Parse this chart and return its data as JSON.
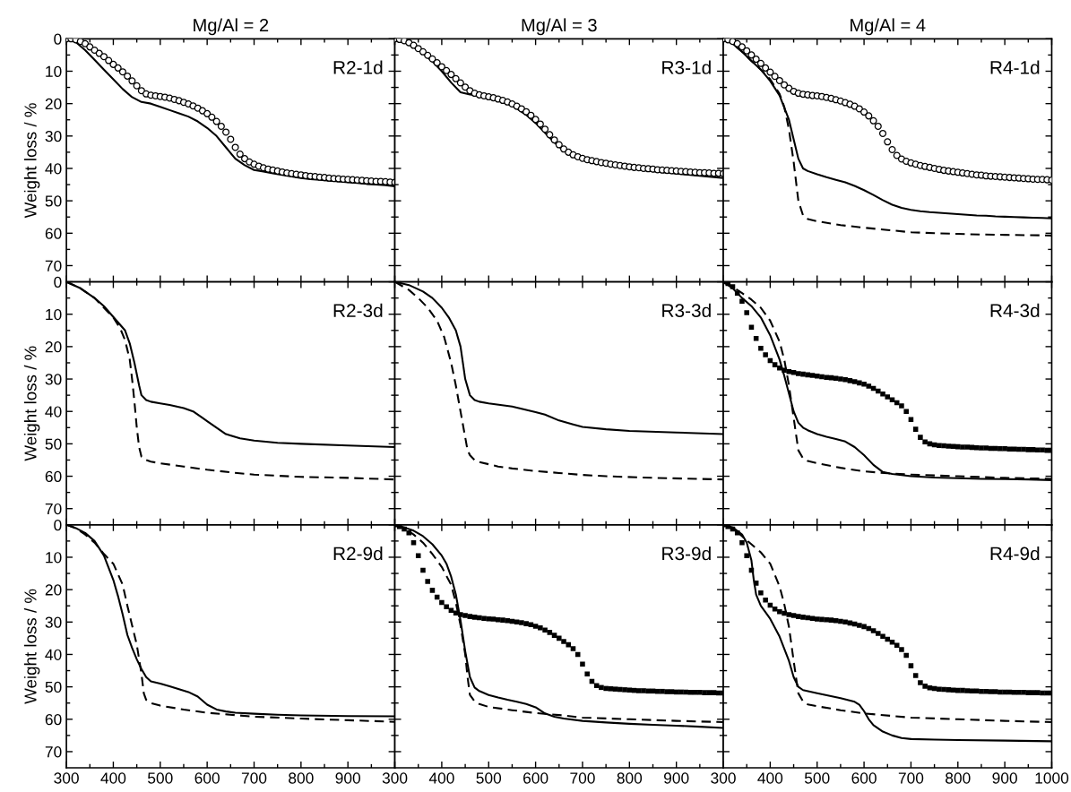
{
  "chart_data": [
    {
      "type": "line",
      "title": "Mg/Al = 2",
      "ylabel": "Weight loss / %",
      "xlim": [
        300,
        1000
      ],
      "ylim": [
        75,
        0
      ],
      "xticks": [
        300,
        400,
        500,
        600,
        700,
        800,
        900,
        1000
      ],
      "yticks": [
        0,
        10,
        20,
        30,
        40,
        50,
        60,
        70
      ],
      "tick_labels": "y",
      "annotations": [
        "R2-1d"
      ],
      "series": [
        {
          "color": "#000000",
          "line_style": "solid",
          "x": [
            300,
            320,
            340,
            360,
            380,
            400,
            420,
            440,
            460,
            480,
            500,
            520,
            540,
            560,
            580,
            600,
            620,
            640,
            660,
            680,
            700,
            720,
            740,
            760,
            780,
            800,
            820,
            840,
            860,
            880,
            900,
            920,
            940,
            960,
            980,
            1000
          ],
          "values": [
            0,
            1,
            3.5,
            6.5,
            9.5,
            12.5,
            15.5,
            18,
            19.5,
            20,
            21,
            22,
            23,
            24,
            25.5,
            27.5,
            30,
            33.5,
            37,
            39,
            40.5,
            41,
            41.5,
            42,
            42.5,
            43,
            43.3,
            43.5,
            43.8,
            44,
            44.3,
            44.5,
            44.8,
            45,
            45.2,
            45.5
          ]
        },
        {
          "type": "scatter",
          "marker": "circle",
          "color": "#000000",
          "x": [
            300,
            310,
            320,
            330,
            340,
            350,
            360,
            370,
            380,
            390,
            400,
            410,
            420,
            430,
            440,
            450,
            460,
            470,
            480,
            490,
            500,
            510,
            520,
            530,
            540,
            550,
            560,
            570,
            580,
            590,
            600,
            610,
            620,
            630,
            640,
            650,
            660,
            670,
            680,
            690,
            700,
            710,
            720,
            730,
            740,
            750,
            760,
            770,
            780,
            790,
            800,
            810,
            820,
            830,
            840,
            850,
            860,
            870,
            880,
            890,
            900,
            910,
            920,
            930,
            940,
            950,
            960,
            970,
            980,
            990,
            1000
          ],
          "values": [
            0,
            0,
            0.3,
            0.8,
            1.5,
            2.5,
            3.5,
            4.5,
            5.5,
            6.7,
            7.9,
            9,
            10.2,
            11.5,
            13,
            14.5,
            16,
            17,
            17.4,
            17.6,
            17.8,
            18,
            18.3,
            18.7,
            19.1,
            19.6,
            20.1,
            20.7,
            21.4,
            22.2,
            23.1,
            24.2,
            25.5,
            27,
            28.8,
            31,
            33.5,
            35.6,
            37,
            38,
            38.7,
            39.3,
            39.8,
            40.2,
            40.5,
            40.8,
            41.1,
            41.4,
            41.6,
            41.8,
            42,
            42.2,
            42.4,
            42.5,
            42.7,
            42.8,
            43,
            43.1,
            43.2,
            43.3,
            43.4,
            43.5,
            43.6,
            43.7,
            43.8,
            43.9,
            44,
            44,
            44.1,
            44.2,
            44.3
          ]
        }
      ]
    },
    {
      "type": "line",
      "title": "Mg/Al = 3",
      "xlim": [
        300,
        1000
      ],
      "ylim": [
        75,
        0
      ],
      "xticks": [
        300,
        400,
        500,
        600,
        700,
        800,
        900,
        1000
      ],
      "yticks": [
        0,
        10,
        20,
        30,
        40,
        50,
        60,
        70
      ],
      "tick_labels": false,
      "annotations": [
        "R3-1d"
      ],
      "series": [
        {
          "color": "#000000",
          "line_style": "solid",
          "x": [
            300,
            320,
            340,
            360,
            380,
            400,
            420,
            440,
            460,
            480,
            500,
            520,
            540,
            560,
            580,
            600,
            620,
            640,
            660,
            680,
            700,
            720,
            750,
            800,
            850,
            900,
            950,
            1000
          ],
          "values": [
            0,
            1,
            2.5,
            4.5,
            7,
            10,
            13.5,
            16.5,
            17.2,
            17.5,
            18,
            18.8,
            20,
            21.5,
            23.5,
            26,
            29,
            32,
            34.5,
            36,
            37,
            37.8,
            38.7,
            40,
            40.9,
            41.6,
            42.3,
            43
          ]
        },
        {
          "type": "scatter",
          "marker": "circle",
          "color": "#000000",
          "x": [
            300,
            310,
            320,
            330,
            340,
            350,
            360,
            370,
            380,
            390,
            400,
            410,
            420,
            430,
            440,
            450,
            460,
            470,
            480,
            490,
            500,
            510,
            520,
            530,
            540,
            550,
            560,
            570,
            580,
            590,
            600,
            610,
            620,
            630,
            640,
            650,
            660,
            670,
            680,
            690,
            700,
            710,
            720,
            730,
            740,
            750,
            760,
            770,
            780,
            790,
            800,
            810,
            820,
            830,
            840,
            850,
            860,
            870,
            880,
            890,
            900,
            910,
            920,
            930,
            940,
            950,
            960,
            970,
            980,
            990,
            1000
          ],
          "values": [
            0,
            0.2,
            0.6,
            1.2,
            2,
            3,
            4,
            5.1,
            6.2,
            7.4,
            8.6,
            9.8,
            11,
            12.3,
            13.6,
            14.9,
            16,
            16.8,
            17.3,
            17.6,
            17.9,
            18.2,
            18.6,
            19,
            19.5,
            20.1,
            20.8,
            21.6,
            22.5,
            23.6,
            24.9,
            26.3,
            27.9,
            29.6,
            31.2,
            32.7,
            34,
            35,
            35.8,
            36.4,
            36.9,
            37.3,
            37.6,
            37.9,
            38.2,
            38.4,
            38.7,
            38.9,
            39.1,
            39.3,
            39.5,
            39.7,
            39.8,
            40,
            40.1,
            40.2,
            40.4,
            40.5,
            40.6,
            40.7,
            40.8,
            40.9,
            41,
            41.1,
            41.2,
            41.3,
            41.3,
            41.4,
            41.5,
            41.5,
            41.6
          ]
        }
      ]
    },
    {
      "type": "line",
      "title": "Mg/Al = 4",
      "xlim": [
        300,
        1000
      ],
      "ylim": [
        75,
        0
      ],
      "xticks": [
        300,
        400,
        500,
        600,
        700,
        800,
        900,
        1000
      ],
      "yticks": [
        0,
        10,
        20,
        30,
        40,
        50,
        60,
        70
      ],
      "tick_labels": false,
      "annotations": [
        "R4-1d"
      ],
      "series": [
        {
          "color": "#000000",
          "line_style": "solid",
          "x": [
            300,
            320,
            340,
            360,
            380,
            400,
            420,
            440,
            450,
            460,
            470,
            480,
            500,
            520,
            540,
            560,
            580,
            600,
            620,
            640,
            660,
            680,
            700,
            720,
            740,
            760,
            780,
            800,
            820,
            840,
            860,
            880,
            900,
            920,
            940,
            960,
            980,
            1000
          ],
          "values": [
            0,
            1.5,
            4,
            6.8,
            9.5,
            13,
            17.5,
            25,
            31,
            37,
            40,
            40.8,
            41.8,
            42.7,
            43.5,
            44.3,
            45.4,
            46.7,
            48.2,
            49.8,
            51.2,
            52.2,
            52.8,
            53.2,
            53.5,
            53.7,
            53.9,
            54.1,
            54.3,
            54.5,
            54.6,
            54.8,
            54.9,
            55,
            55.1,
            55.2,
            55.3,
            55.4
          ]
        },
        {
          "color": "#000000",
          "line_style": "dashed",
          "x": [
            300,
            320,
            340,
            360,
            380,
            400,
            420,
            430,
            440,
            450,
            460,
            470,
            480,
            500,
            550,
            600,
            650,
            700,
            750,
            800,
            850,
            900,
            950,
            1000
          ],
          "values": [
            0,
            1.5,
            4,
            6.8,
            9.5,
            12.5,
            17,
            21,
            28,
            38,
            50,
            54.5,
            55.6,
            56.3,
            57.5,
            58.3,
            59,
            59.7,
            60,
            60.2,
            60.4,
            60.5,
            60.6,
            60.7
          ]
        },
        {
          "type": "scatter",
          "marker": "circle",
          "color": "#000000",
          "x": [
            300,
            310,
            320,
            330,
            340,
            350,
            360,
            370,
            380,
            390,
            400,
            410,
            420,
            430,
            440,
            450,
            460,
            470,
            480,
            490,
            500,
            510,
            520,
            530,
            540,
            550,
            560,
            570,
            580,
            590,
            600,
            610,
            620,
            630,
            640,
            650,
            660,
            670,
            680,
            690,
            700,
            710,
            720,
            730,
            740,
            750,
            760,
            770,
            780,
            790,
            800,
            810,
            820,
            830,
            840,
            850,
            860,
            870,
            880,
            890,
            900,
            910,
            920,
            930,
            940,
            950,
            960,
            970,
            980,
            990,
            1000
          ],
          "values": [
            0,
            0.3,
            0.8,
            1.5,
            2.5,
            3.7,
            5,
            6.3,
            7.6,
            9,
            10.3,
            11.6,
            12.9,
            14.2,
            15.3,
            16.2,
            16.8,
            17.1,
            17.3,
            17.5,
            17.6,
            17.8,
            18.1,
            18.4,
            18.8,
            19.2,
            19.7,
            20.2,
            20.8,
            21.6,
            22.6,
            23.8,
            25.3,
            27,
            29.2,
            31.8,
            34.2,
            36,
            37.1,
            37.8,
            38.3,
            38.7,
            39.1,
            39.4,
            39.7,
            40,
            40.3,
            40.6,
            40.8,
            41,
            41.2,
            41.4,
            41.6,
            41.8,
            42,
            42.1,
            42.3,
            42.4,
            42.5,
            42.6,
            42.7,
            42.8,
            42.9,
            43,
            43.1,
            43.2,
            43.3,
            43.4,
            43.4,
            43.5,
            43.6
          ]
        }
      ]
    },
    {
      "type": "line",
      "ylabel": "Weight loss / %",
      "xlim": [
        300,
        1000
      ],
      "ylim": [
        75,
        0
      ],
      "xticks": [
        300,
        400,
        500,
        600,
        700,
        800,
        900,
        1000
      ],
      "yticks": [
        0,
        10,
        20,
        30,
        40,
        50,
        60,
        70
      ],
      "tick_labels": "y",
      "annotations": [
        "R2-3d"
      ],
      "series": [
        {
          "color": "#000000",
          "line_style": "solid",
          "x": [
            300,
            330,
            360,
            380,
            395,
            410,
            425,
            435,
            445,
            455,
            460,
            470,
            480,
            500,
            520,
            550,
            570,
            590,
            600,
            620,
            640,
            670,
            700,
            750,
            800,
            900,
            1000
          ],
          "values": [
            0,
            2,
            5,
            7.5,
            10,
            12.5,
            15,
            19,
            25,
            32,
            35,
            36.5,
            37,
            37.5,
            38,
            39,
            40,
            42,
            43,
            45,
            47,
            48.3,
            49,
            49.7,
            50,
            50.5,
            51
          ]
        },
        {
          "color": "#000000",
          "line_style": "dashed",
          "x": [
            300,
            330,
            360,
            380,
            400,
            415,
            425,
            435,
            440,
            445,
            450,
            455,
            460,
            470,
            480,
            500,
            550,
            600,
            650,
            700,
            800,
            900,
            1000
          ],
          "values": [
            0,
            2,
            5,
            8,
            11,
            14.5,
            18,
            24,
            30,
            37,
            45,
            51,
            54,
            55,
            55.5,
            56,
            57,
            58,
            58.8,
            59.5,
            60.2,
            60.5,
            61
          ]
        }
      ]
    },
    {
      "type": "line",
      "xlim": [
        300,
        1000
      ],
      "ylim": [
        75,
        0
      ],
      "xticks": [
        300,
        400,
        500,
        600,
        700,
        800,
        900,
        1000
      ],
      "yticks": [
        0,
        10,
        20,
        30,
        40,
        50,
        60,
        70
      ],
      "tick_labels": false,
      "annotations": [
        "R3-3d"
      ],
      "series": [
        {
          "color": "#000000",
          "line_style": "solid",
          "x": [
            300,
            330,
            360,
            380,
            400,
            415,
            430,
            440,
            445,
            450,
            460,
            470,
            480,
            500,
            550,
            600,
            620,
            650,
            680,
            700,
            750,
            800,
            900,
            1000
          ],
          "values": [
            0,
            1,
            3,
            5,
            8,
            11,
            15,
            20,
            25,
            30,
            35,
            36.5,
            37,
            37.5,
            38.5,
            40.2,
            41,
            42.8,
            44,
            44.8,
            45.5,
            46,
            46.5,
            47
          ]
        },
        {
          "color": "#000000",
          "line_style": "dashed",
          "x": [
            300,
            330,
            350,
            370,
            390,
            405,
            420,
            430,
            440,
            450,
            455,
            460,
            470,
            480,
            500,
            520,
            550,
            600,
            650,
            700,
            750,
            850,
            1000
          ],
          "values": [
            0,
            2.5,
            5,
            8,
            12,
            17,
            25,
            32,
            40,
            48,
            52,
            53.5,
            55,
            55.6,
            56.3,
            57,
            57.6,
            58.4,
            59,
            59.6,
            60,
            60.5,
            61
          ]
        }
      ]
    },
    {
      "type": "line",
      "xlim": [
        300,
        1000
      ],
      "ylim": [
        75,
        0
      ],
      "xticks": [
        300,
        400,
        500,
        600,
        700,
        800,
        900,
        1000
      ],
      "yticks": [
        0,
        10,
        20,
        30,
        40,
        50,
        60,
        70
      ],
      "tick_labels": false,
      "annotations": [
        "R4-3d"
      ],
      "series": [
        {
          "color": "#000000",
          "line_style": "solid",
          "x": [
            300,
            320,
            340,
            360,
            380,
            400,
            420,
            430,
            440,
            450,
            460,
            470,
            480,
            500,
            520,
            540,
            560,
            580,
            600,
            620,
            640,
            660,
            700,
            750,
            800,
            850,
            900,
            950,
            1000
          ],
          "values": [
            0,
            2,
            5,
            7.5,
            11,
            16.5,
            24,
            29,
            34.5,
            40,
            43.5,
            45,
            45.8,
            47,
            47.8,
            48.5,
            49.3,
            51,
            53.5,
            56.5,
            58.7,
            59.3,
            60,
            60.4,
            60.6,
            60.8,
            60.9,
            61,
            61.2
          ]
        },
        {
          "color": "#000000",
          "line_style": "dashed",
          "x": [
            300,
            320,
            340,
            360,
            380,
            400,
            420,
            430,
            440,
            450,
            460,
            470,
            480,
            500,
            550,
            600,
            650,
            700,
            800,
            900,
            1000
          ],
          "values": [
            0,
            1.5,
            3.5,
            5.5,
            8,
            12,
            18.5,
            24,
            32,
            42,
            52,
            54.5,
            55.3,
            56,
            57.4,
            58.5,
            59.1,
            59.5,
            60,
            60.5,
            60.8
          ]
        },
        {
          "type": "scatter",
          "marker": "square",
          "color": "#000000",
          "x": [
            300,
            310,
            320,
            330,
            340,
            350,
            360,
            370,
            380,
            390,
            400,
            410,
            420,
            430,
            440,
            450,
            460,
            470,
            480,
            490,
            500,
            510,
            520,
            530,
            540,
            550,
            560,
            570,
            580,
            590,
            600,
            610,
            620,
            630,
            640,
            650,
            660,
            670,
            680,
            690,
            700,
            710,
            720,
            730,
            740,
            750,
            760,
            770,
            780,
            790,
            800,
            810,
            820,
            830,
            840,
            850,
            860,
            870,
            880,
            890,
            900,
            910,
            920,
            930,
            940,
            950,
            960,
            970,
            980,
            990,
            1000
          ],
          "values": [
            0,
            0.5,
            1.5,
            3.5,
            6,
            9.5,
            14,
            17.5,
            20.5,
            22.5,
            24.3,
            25.6,
            26.6,
            27.3,
            27.7,
            28,
            28.3,
            28.5,
            28.7,
            28.9,
            29.1,
            29.3,
            29.5,
            29.6,
            29.8,
            30,
            30.2,
            30.5,
            30.8,
            31.2,
            31.6,
            32.2,
            32.9,
            33.7,
            34.6,
            35.5,
            36.4,
            37.3,
            38.3,
            40,
            42.5,
            45.5,
            48,
            49.4,
            50,
            50.3,
            50.5,
            50.6,
            50.7,
            50.8,
            50.9,
            51,
            51,
            51.1,
            51.2,
            51.3,
            51.3,
            51.4,
            51.4,
            51.5,
            51.5,
            51.6,
            51.6,
            51.7,
            51.7,
            51.8,
            51.8,
            51.9,
            51.9,
            52,
            52
          ]
        }
      ]
    },
    {
      "type": "line",
      "ylabel": "Weight loss / %",
      "xlim": [
        300,
        1000
      ],
      "ylim": [
        75,
        0
      ],
      "xticks": [
        300,
        400,
        500,
        600,
        700,
        800,
        900,
        {
          "value": 1000,
          "label": null
        }
      ],
      "yticks": [
        0,
        10,
        20,
        30,
        40,
        50,
        60,
        70
      ],
      "annotations": [
        "R2-9d"
      ],
      "series": [
        {
          "color": "#000000",
          "line_style": "solid",
          "x": [
            300,
            320,
            340,
            360,
            380,
            400,
            410,
            420,
            430,
            440,
            450,
            460,
            470,
            480,
            500,
            520,
            540,
            560,
            580,
            600,
            620,
            640,
            660,
            700,
            750,
            800,
            900,
            1000
          ],
          "values": [
            0,
            1,
            2.5,
            5,
            9.5,
            17,
            22,
            27.7,
            34,
            38,
            41.5,
            44.5,
            47,
            48.3,
            49,
            49.8,
            50.7,
            51.6,
            53,
            55.5,
            57,
            57.6,
            58,
            58.3,
            58.6,
            58.8,
            59,
            59.1
          ]
        },
        {
          "color": "#000000",
          "line_style": "dashed",
          "x": [
            300,
            320,
            340,
            360,
            380,
            400,
            420,
            430,
            440,
            450,
            460,
            465,
            470,
            480,
            500,
            550,
            600,
            700,
            800,
            900,
            1000
          ],
          "values": [
            0,
            1,
            3,
            5.5,
            9,
            12,
            18.5,
            25,
            31,
            37,
            46,
            52,
            54,
            55,
            55.8,
            57,
            58,
            59.2,
            59.8,
            60.3,
            60.8
          ]
        }
      ]
    },
    {
      "type": "line",
      "xlim": [
        300,
        1000
      ],
      "ylim": [
        75,
        0
      ],
      "xticks": [
        300,
        400,
        500,
        600,
        700,
        800,
        900,
        {
          "value": 1000,
          "label": null
        }
      ],
      "yticks": [
        0,
        10,
        20,
        30,
        40,
        50,
        60,
        70
      ],
      "tick_labels": "x",
      "annotations": [
        "R3-9d"
      ],
      "series": [
        {
          "color": "#000000",
          "line_style": "solid",
          "x": [
            300,
            320,
            340,
            360,
            380,
            400,
            410,
            420,
            430,
            440,
            450,
            460,
            470,
            480,
            500,
            520,
            540,
            560,
            580,
            600,
            620,
            640,
            660,
            700,
            750,
            800,
            850,
            900,
            950,
            1000
          ],
          "values": [
            0,
            0.8,
            1.8,
            3.5,
            6,
            9.5,
            12,
            16,
            21.5,
            29.5,
            39,
            47,
            50.2,
            51.3,
            52.5,
            53.3,
            54,
            54.6,
            55.3,
            56.3,
            58.2,
            59.2,
            59.8,
            60.5,
            61,
            61.4,
            61.7,
            62,
            62.3,
            62.7
          ]
        },
        {
          "color": "#000000",
          "line_style": "dashed",
          "x": [
            300,
            320,
            340,
            360,
            380,
            400,
            420,
            430,
            440,
            450,
            455,
            460,
            470,
            480,
            500,
            550,
            600,
            650,
            700,
            800,
            900,
            1000
          ],
          "values": [
            0,
            1,
            3,
            5.5,
            9,
            13,
            18.5,
            24,
            31,
            40,
            47,
            52.5,
            54.5,
            55.3,
            56.2,
            57.2,
            58.1,
            58.7,
            59.5,
            60,
            60.5,
            60.9
          ]
        },
        {
          "type": "scatter",
          "marker": "square",
          "color": "#000000",
          "x": [
            300,
            310,
            320,
            330,
            340,
            350,
            360,
            370,
            380,
            390,
            400,
            410,
            420,
            430,
            440,
            450,
            460,
            470,
            480,
            490,
            500,
            510,
            520,
            530,
            540,
            550,
            560,
            570,
            580,
            590,
            600,
            610,
            620,
            630,
            640,
            650,
            660,
            670,
            680,
            690,
            700,
            710,
            720,
            730,
            740,
            750,
            760,
            770,
            780,
            790,
            800,
            810,
            820,
            830,
            840,
            850,
            860,
            870,
            880,
            890,
            900,
            910,
            920,
            930,
            940,
            950,
            960,
            970,
            980,
            990,
            1000
          ],
          "values": [
            0,
            0.5,
            1.3,
            2.5,
            5.5,
            9.5,
            14,
            17.5,
            20.2,
            22.3,
            24,
            25.3,
            26.4,
            27.2,
            27.7,
            28,
            28.3,
            28.5,
            28.7,
            28.9,
            29,
            29.1,
            29.3,
            29.4,
            29.6,
            29.8,
            30,
            30.2,
            30.5,
            30.8,
            31.3,
            31.8,
            32.5,
            33.2,
            34.1,
            35,
            36,
            37,
            38.2,
            40,
            43,
            46,
            48.3,
            49.6,
            50.2,
            50.5,
            50.6,
            50.7,
            50.8,
            50.9,
            51,
            51.1,
            51.2,
            51.2,
            51.3,
            51.3,
            51.4,
            51.4,
            51.5,
            51.5,
            51.6,
            51.6,
            51.6,
            51.7,
            51.7,
            51.7,
            51.8,
            51.8,
            51.8,
            51.9,
            51.9
          ]
        }
      ]
    },
    {
      "type": "line",
      "xlim": [
        300,
        1000
      ],
      "ylim": [
        75,
        0
      ],
      "xticks": [
        300,
        400,
        500,
        600,
        700,
        800,
        900,
        1000
      ],
      "yticks": [
        0,
        10,
        20,
        30,
        40,
        50,
        60,
        70
      ],
      "tick_labels": "x",
      "annotations": [
        "R4-9d"
      ],
      "series": [
        {
          "color": "#000000",
          "line_style": "solid",
          "x": [
            300,
            320,
            340,
            350,
            360,
            365,
            370,
            380,
            400,
            420,
            440,
            450,
            460,
            470,
            500,
            550,
            580,
            590,
            600,
            610,
            620,
            640,
            660,
            680,
            700,
            750,
            800,
            900,
            1000
          ],
          "values": [
            0,
            0.8,
            3,
            5.5,
            11,
            17,
            21.5,
            25,
            29,
            34.5,
            42,
            47,
            50,
            51,
            52,
            53.5,
            54.6,
            55.5,
            57.5,
            60,
            61.8,
            63.8,
            65,
            65.8,
            66.1,
            66.3,
            66.4,
            66.6,
            66.8
          ]
        },
        {
          "color": "#000000",
          "line_style": "dashed",
          "x": [
            300,
            320,
            340,
            360,
            380,
            400,
            420,
            430,
            440,
            450,
            460,
            470,
            480,
            500,
            550,
            600,
            700,
            800,
            900,
            1000
          ],
          "values": [
            0,
            1,
            3.5,
            6,
            8.5,
            12,
            19,
            24.5,
            31.5,
            42,
            52,
            54.5,
            55.4,
            56,
            57.2,
            58.2,
            59.5,
            60,
            60.5,
            60.9
          ]
        },
        {
          "type": "scatter",
          "marker": "square",
          "color": "#000000",
          "x": [
            300,
            310,
            320,
            330,
            340,
            350,
            360,
            370,
            380,
            390,
            400,
            410,
            420,
            430,
            440,
            450,
            460,
            470,
            480,
            490,
            500,
            510,
            520,
            530,
            540,
            550,
            560,
            570,
            580,
            590,
            600,
            610,
            620,
            630,
            640,
            650,
            660,
            670,
            680,
            690,
            700,
            710,
            720,
            730,
            740,
            750,
            760,
            770,
            780,
            790,
            800,
            810,
            820,
            830,
            840,
            850,
            860,
            870,
            880,
            890,
            900,
            910,
            920,
            930,
            940,
            950,
            960,
            970,
            980,
            990,
            1000
          ],
          "values": [
            0,
            0.5,
            1.3,
            2.5,
            5.5,
            9.5,
            14,
            18,
            21,
            23.2,
            24.8,
            26,
            26.8,
            27.3,
            27.7,
            28,
            28.3,
            28.5,
            28.7,
            28.9,
            29.1,
            29.2,
            29.3,
            29.4,
            29.6,
            29.8,
            30,
            30.3,
            30.6,
            31,
            31.4,
            32,
            32.7,
            33.5,
            34.4,
            35.3,
            36.2,
            37.2,
            38.5,
            40.3,
            43.5,
            46.5,
            48.7,
            49.8,
            50.3,
            50.5,
            50.7,
            50.8,
            50.9,
            51,
            51.1,
            51.1,
            51.2,
            51.3,
            51.3,
            51.4,
            51.4,
            51.5,
            51.5,
            51.6,
            51.6,
            51.6,
            51.7,
            51.7,
            51.7,
            51.8,
            51.8,
            51.8,
            51.9,
            51.9,
            51.9
          ]
        }
      ]
    }
  ]
}
